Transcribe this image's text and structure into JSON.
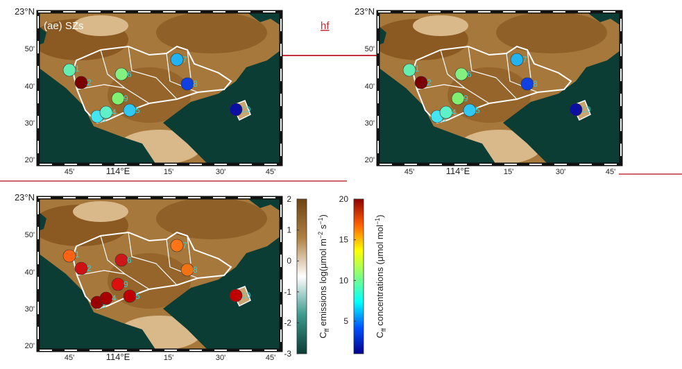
{
  "map_axes": {
    "lat_labels": [
      "23°N",
      "50'",
      "40'",
      "30'",
      "20'"
    ],
    "lon_labels": [
      "45'",
      "114°E",
      "15'",
      "30'",
      "45'"
    ]
  },
  "annotation": "hf",
  "panels": [
    {
      "label": "(ae) SZs",
      "stations": [
        {
          "id": "1",
          "color": "#66eeb0"
        },
        {
          "id": "2",
          "color": "#7a0000"
        },
        {
          "id": "3",
          "color": "#44e4f0"
        },
        {
          "id": "4",
          "color": "#60f0c8"
        },
        {
          "id": "5",
          "color": "#30c8f0"
        },
        {
          "id": "6",
          "color": "#84f080"
        },
        {
          "id": "7",
          "color": "#22b4f0"
        },
        {
          "id": "8",
          "color": "#1040e0"
        },
        {
          "id": "9",
          "color": "#80f070"
        },
        {
          "id": "10",
          "color": "#0c10a0"
        }
      ]
    },
    {
      "stations": [
        {
          "id": "1",
          "color": "#66eeb0"
        },
        {
          "id": "2",
          "color": "#7a0000"
        },
        {
          "id": "3",
          "color": "#44e4f0"
        },
        {
          "id": "4",
          "color": "#60f0c8"
        },
        {
          "id": "5",
          "color": "#30c8f0"
        },
        {
          "id": "6",
          "color": "#84f080"
        },
        {
          "id": "7",
          "color": "#22b4f0"
        },
        {
          "id": "8",
          "color": "#1040e0"
        },
        {
          "id": "9",
          "color": "#80f070"
        },
        {
          "id": "10",
          "color": "#0c10a0"
        }
      ]
    },
    {
      "stations": [
        {
          "id": "1",
          "color": "#ff6414"
        },
        {
          "id": "2",
          "color": "#cc1212"
        },
        {
          "id": "3",
          "color": "#990000"
        },
        {
          "id": "4",
          "color": "#a80000"
        },
        {
          "id": "5",
          "color": "#c00000"
        },
        {
          "id": "6",
          "color": "#cc1818"
        },
        {
          "id": "7",
          "color": "#ff7414"
        },
        {
          "id": "8",
          "color": "#f07414"
        },
        {
          "id": "9",
          "color": "#dd1010"
        },
        {
          "id": "10",
          "color": "#c00000"
        }
      ]
    }
  ],
  "colorbars": [
    {
      "label": [
        "C",
        "ff",
        " emissions log(μmol m",
        "−2",
        " s",
        "−1",
        ")"
      ],
      "lim": [
        -3,
        2
      ],
      "ticks": [
        2,
        1,
        0,
        -1,
        -2,
        -3
      ],
      "colors": [
        "#0b3d34",
        "#3a9a8c",
        "#ffffff",
        "#b08040",
        "#6e4412"
      ]
    },
    {
      "label": [
        "C",
        "ff",
        " concentrations (μmol mol",
        "−1",
        ")"
      ],
      "lim": [
        1,
        20
      ],
      "ticks": [
        20,
        15,
        10,
        5
      ],
      "colors": [
        "#00008f",
        "#0050ff",
        "#00ffff",
        "#80ff80",
        "#ffff00",
        "#ff6000",
        "#8f0000"
      ]
    }
  ]
}
